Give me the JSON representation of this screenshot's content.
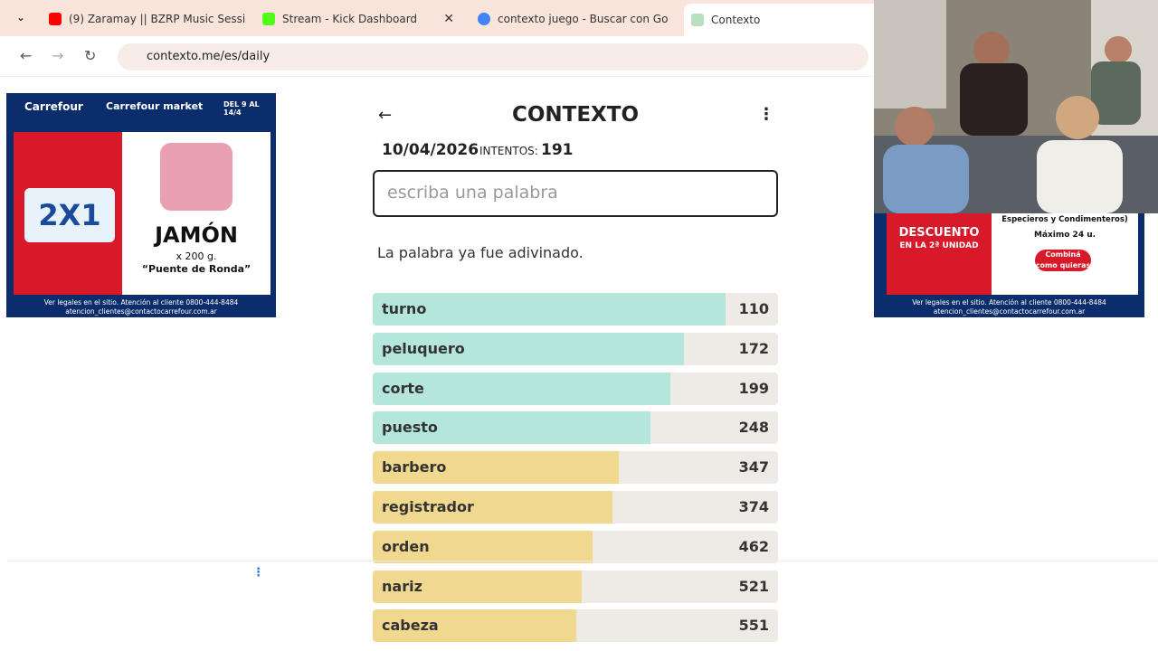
{
  "browser": {
    "tabs": [
      {
        "title": "(9) Zaramay || BZRP Music Sessi"
      },
      {
        "title": "Stream - Kick Dashboard"
      },
      {
        "title": "contexto juego - Buscar con Go"
      },
      {
        "title": "Contexto"
      }
    ],
    "url": "contexto.me/es/daily"
  },
  "ads": {
    "left": {
      "brand": "Carrefour",
      "brand2": "Carrefour market",
      "dates": "DEL 9 AL 14/4",
      "promo": "2X1",
      "product": "JAMÓN",
      "weight": "x 200 g.",
      "variety": "“Puente de Ronda”",
      "legal": "Ver legales en el sitio. Atención al cliente 0800-444-8484",
      "email": "atencion_clientes@contactocarrefour.com.ar"
    },
    "right": {
      "discount": "DESCUENTO",
      "unit": "EN LA 2ª UNIDAD",
      "category": "Especieros y Condimenteros)",
      "max": "Máximo 24 u.",
      "combo": "Combiná como quieras",
      "legal": "Ver legales en el sitio. Atención al cliente 0800-444-8484",
      "email": "atencion_clientes@contactocarrefour.com.ar"
    }
  },
  "game": {
    "title": "CONTEXTO",
    "date": "10/04/2026",
    "attempts_label": "INTENTOS:",
    "attempts": "191",
    "placeholder": "escriba una palabra",
    "message": "La palabra ya fue adivinado.",
    "guesses": [
      {
        "word": "turno",
        "rank": 110
      },
      {
        "word": "peluquero",
        "rank": 172
      },
      {
        "word": "corte",
        "rank": 199
      },
      {
        "word": "puesto",
        "rank": 248
      },
      {
        "word": "barbero",
        "rank": 347
      },
      {
        "word": "registrador",
        "rank": 374
      },
      {
        "word": "orden",
        "rank": 462
      },
      {
        "word": "nariz",
        "rank": 521
      },
      {
        "word": "cabeza",
        "rank": 551
      }
    ]
  }
}
